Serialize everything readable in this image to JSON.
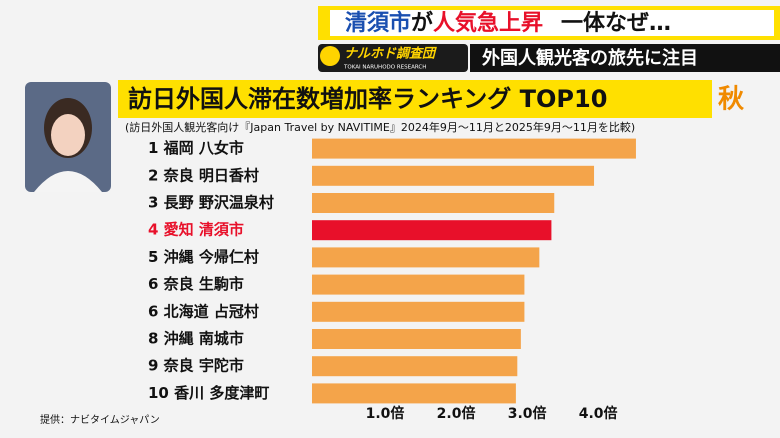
{
  "chart_data": {
    "type": "barh",
    "headline": [
      "清須市",
      "が",
      "人気急上昇",
      "一体なぜ…"
    ],
    "logo": "ナルホド調査団",
    "logo_sub": "TOKAI NARUHODO RESEARCH",
    "topic": "外国人観光客の旅先に注目",
    "title": "訪日外国人滞在数増加率ランキング TOP10",
    "season": "秋",
    "subtitle": "(訪日外国人観光客向け『Japan Travel by NAVITIME』2024年9月～11月と2025年9月～11月を比較)",
    "source": "提供：ナビタイムジャパン",
    "categories": [
      "1 福岡 八女市",
      "2 奈良 明日香村",
      "3 長野 野沢温泉村",
      "4 愛知 清須市",
      "5 沖縄 今帰仁村",
      "6 奈良 生駒市",
      "6 北海道 占冠村",
      "8 沖縄 南城市",
      "9 奈良 宇陀市",
      "10 香川 多度津町"
    ],
    "values": [
      4.56,
      3.97,
      3.41,
      3.37,
      3.2,
      2.99,
      2.99,
      2.94,
      2.89,
      2.87
    ],
    "color": "#f4a44a",
    "colors": [
      "#f4a44a",
      "#f4a44a",
      "#f4a44a",
      "#e8102a",
      "#f4a44a",
      "#f4a44a",
      "#f4a44a",
      "#f4a44a",
      "#f4a44a",
      "#f4a44a"
    ],
    "xlim": [
      0,
      4.8
    ],
    "xticks": [
      {
        "value": 1,
        "label": "1.0倍"
      },
      {
        "value": 2,
        "label": "2.0倍"
      },
      {
        "value": 3,
        "label": "3.0倍"
      },
      {
        "value": 4,
        "label": "4.0倍"
      }
    ]
  }
}
